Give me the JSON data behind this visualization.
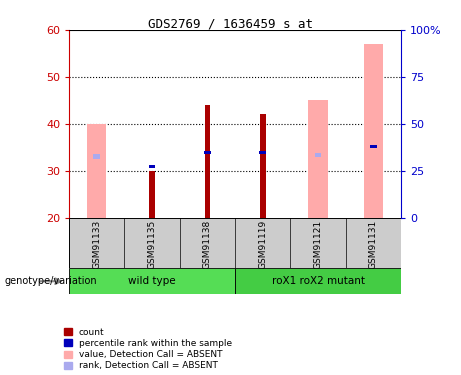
{
  "title": "GDS2769 / 1636459_s_at",
  "samples": [
    "GSM91133",
    "GSM91135",
    "GSM91138",
    "GSM91119",
    "GSM91121",
    "GSM91131"
  ],
  "groups": [
    {
      "name": "wild type",
      "indices": [
        0,
        1,
        2
      ],
      "color": "#55dd55"
    },
    {
      "name": "roX1 roX2 mutant",
      "indices": [
        3,
        4,
        5
      ],
      "color": "#44cc44"
    }
  ],
  "ylim_left": [
    20,
    60
  ],
  "ylim_right": [
    0,
    100
  ],
  "yticks_left": [
    20,
    30,
    40,
    50,
    60
  ],
  "yticks_right": [
    0,
    25,
    50,
    75,
    100
  ],
  "yticklabels_right": [
    "0",
    "25",
    "50",
    "75",
    "100%"
  ],
  "pink_bar_tops": [
    40,
    20,
    20,
    20,
    45,
    57
  ],
  "pink_bar_bottoms": [
    20,
    20,
    20,
    20,
    20,
    20
  ],
  "red_bar_tops": [
    20,
    30,
    44,
    42,
    20,
    20
  ],
  "red_bar_bottoms": [
    20,
    20,
    20,
    20,
    20,
    20
  ],
  "blue_bar_tops": [
    33.5,
    31.2,
    34.2,
    34.2,
    33.8,
    35.5
  ],
  "blue_bar_bottoms": [
    32.5,
    30.5,
    33.5,
    33.5,
    33.0,
    34.8
  ],
  "light_blue_tops": [
    33.5,
    20,
    20,
    20,
    33.8,
    20
  ],
  "light_blue_bottoms": [
    32.5,
    20,
    20,
    20,
    33.0,
    20
  ],
  "pink_color": "#ffaaaa",
  "red_color": "#aa0000",
  "blue_color": "#0000bb",
  "light_blue_color": "#aaaaee",
  "left_tick_color": "#cc0000",
  "right_tick_color": "#0000cc",
  "legend_items": [
    {
      "label": "count",
      "color": "#aa0000"
    },
    {
      "label": "percentile rank within the sample",
      "color": "#0000bb"
    },
    {
      "label": "value, Detection Call = ABSENT",
      "color": "#ffaaaa"
    },
    {
      "label": "rank, Detection Call = ABSENT",
      "color": "#aaaaee"
    }
  ],
  "genotype_label": "genotype/variation",
  "sample_bg": "#cccccc",
  "group_bg": "#55dd55",
  "group2_bg": "#44cc44"
}
